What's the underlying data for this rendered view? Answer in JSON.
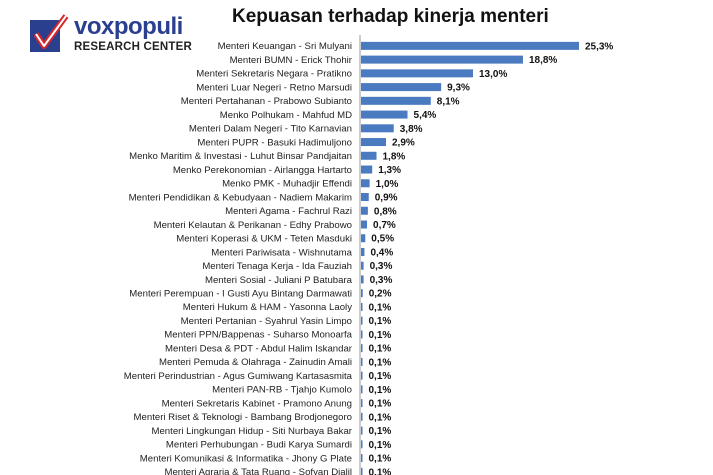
{
  "logo": {
    "name": "voxpopuli",
    "subtitle": "RESEARCH CENTER",
    "brand_color": "#2b3f8f",
    "accent_color": "#d6262b"
  },
  "chart_data": {
    "type": "bar",
    "orientation": "horizontal",
    "title": "Kepuasan terhadap kinerja menteri",
    "xlabel": "",
    "ylabel": "",
    "xlim": [
      0,
      26
    ],
    "grid": false,
    "legend": "none",
    "bar_color": "#4a7bc0",
    "categories": [
      "Menteri Keuangan - Sri Mulyani",
      "Menteri BUMN - Erick Thohir",
      "Menteri Sekretaris Negara - Pratikno",
      "Menteri Luar Negeri - Retno Marsudi",
      "Menteri Pertahanan - Prabowo Subianto",
      "Menko Polhukam - Mahfud MD",
      "Menteri Dalam Negeri - Tito Karnavian",
      "Menteri PUPR - Basuki Hadimuljono",
      "Menko Maritim & Investasi - Luhut Binsar Pandjaitan",
      "Menko Perekonomian - Airlangga Hartarto",
      "Menko PMK - Muhadjir Effendi",
      "Menteri Pendidikan & Kebudyaan - Nadiem Makarim",
      "Menteri Agama - Fachrul Razi",
      "Menteri Kelautan & Perikanan - Edhy Prabowo",
      "Menteri Koperasi & UKM - Teten Masduki",
      "Menteri Pariwisata - Wishnutama",
      "Menteri Tenaga Kerja - Ida Fauziah",
      "Menteri Sosial - Juliani P Batubara",
      "Menteri Perempuan - I Gusti Ayu Bintang Darmawati",
      "Menteri Hukum & HAM - Yasonna Laoly",
      "Menteri Pertanian - Syahrul Yasin Limpo",
      "Menteri PPN/Bappenas - Suharso Monoarfa",
      "Menteri Desa & PDT - Abdul Halim Iskandar",
      "Menteri Pemuda & Olahraga - Zainudin Amali",
      "Menteri Perindustrian - Agus Gumiwang Kartasasmita",
      "Menteri PAN-RB - Tjahjo Kumolo",
      "Menteri Sekretaris Kabinet - Pramono Anung",
      "Menteri Riset & Teknologi - Bambang Brodjonegoro",
      "Menteri Lingkungan Hidup - Siti Nurbaya Bakar",
      "Menteri Perhubungan - Budi Karya Sumardi",
      "Menteri Komunikasi & Informatika - Jhony G Plate",
      "Menteri Agraria & Tata Ruang - Sofyan Djalil"
    ],
    "values": [
      25.3,
      18.8,
      13.0,
      9.3,
      8.1,
      5.4,
      3.8,
      2.9,
      1.8,
      1.3,
      1.0,
      0.9,
      0.8,
      0.7,
      0.5,
      0.4,
      0.3,
      0.3,
      0.2,
      0.1,
      0.1,
      0.1,
      0.1,
      0.1,
      0.1,
      0.1,
      0.1,
      0.1,
      0.1,
      0.1,
      0.1,
      0.1
    ],
    "value_labels": [
      "25,3%",
      "18,8%",
      "13,0%",
      "9,3%",
      "8,1%",
      "5,4%",
      "3,8%",
      "2,9%",
      "1,8%",
      "1,3%",
      "1,0%",
      "0,9%",
      "0,8%",
      "0,7%",
      "0,5%",
      "0,4%",
      "0,3%",
      "0,3%",
      "0,2%",
      "0,1%",
      "0,1%",
      "0,1%",
      "0,1%",
      "0,1%",
      "0,1%",
      "0,1%",
      "0,1%",
      "0,1%",
      "0,1%",
      "0,1%",
      "0,1%",
      "0,1%"
    ]
  }
}
